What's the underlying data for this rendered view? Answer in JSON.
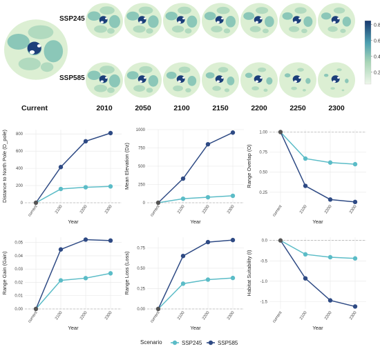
{
  "maps": {
    "rows": [
      "SSP245",
      "SSP585"
    ],
    "columns": [
      "Current",
      "2010",
      "2050",
      "2100",
      "2150",
      "2200",
      "2250",
      "2300"
    ],
    "colorbar": {
      "ticks": [
        "0.8",
        "0.6",
        "0.4",
        "0.2"
      ],
      "tick_values": [
        0.8,
        0.6,
        0.4,
        0.2
      ],
      "min": 0.05,
      "max": 0.85
    },
    "colors": {
      "low": "#e6f2dd",
      "mid": "#7bbfb0",
      "high": "#1c3f7a",
      "land_bg": "#d9ecd0"
    }
  },
  "chart_data": [
    {
      "type": "line",
      "ylabel": "Distance to North Pole (D_pole)",
      "xlabel": "Year",
      "categories": [
        "current",
        "2100",
        "2200",
        "2300"
      ],
      "ylim": [
        0,
        850
      ],
      "yticks": [
        0,
        200,
        400,
        600,
        800
      ],
      "ytick_labels": [
        "0",
        "200",
        "400",
        "600",
        "800"
      ],
      "baseline": 0,
      "series": [
        {
          "name": "SSP245",
          "values": [
            0,
            160,
            180,
            190
          ]
        },
        {
          "name": "SSP585",
          "values": [
            0,
            415,
            715,
            810
          ]
        }
      ]
    },
    {
      "type": "line",
      "ylabel": "Mean Elevation (Dz)",
      "xlabel": "Year",
      "categories": [
        "current",
        "2100",
        "2200",
        "2300"
      ],
      "ylim": [
        0,
        1000
      ],
      "yticks": [
        0,
        250,
        500,
        750,
        1000
      ],
      "ytick_labels": [
        "0",
        "250",
        "500",
        "750",
        "1000"
      ],
      "baseline": 0,
      "series": [
        {
          "name": "SSP245",
          "values": [
            0,
            55,
            75,
            95
          ]
        },
        {
          "name": "SSP585",
          "values": [
            0,
            330,
            800,
            960
          ]
        }
      ]
    },
    {
      "type": "line",
      "ylabel": "Range Overlap (O)",
      "xlabel": "Year",
      "categories": [
        "current",
        "2100",
        "2200",
        "2300"
      ],
      "ylim": [
        0.12,
        1.03
      ],
      "yticks": [
        0.25,
        0.5,
        0.75,
        1.0
      ],
      "ytick_labels": [
        "0.25",
        "0.50",
        "0.75",
        "1.00"
      ],
      "baseline": 1.0,
      "series": [
        {
          "name": "SSP245",
          "values": [
            1.0,
            0.67,
            0.62,
            0.6
          ]
        },
        {
          "name": "SSP585",
          "values": [
            1.0,
            0.33,
            0.16,
            0.13
          ]
        }
      ]
    },
    {
      "type": "line",
      "ylabel": "Range Gain (Gain)",
      "xlabel": "Year",
      "categories": [
        "current",
        "2100",
        "2200",
        "2300"
      ],
      "ylim": [
        0,
        0.054
      ],
      "yticks": [
        0,
        0.01,
        0.02,
        0.03,
        0.04,
        0.05
      ],
      "ytick_labels": [
        "0.00",
        "0.01",
        "0.02",
        "0.03",
        "0.04",
        "0.05"
      ],
      "baseline": 0,
      "series": [
        {
          "name": "SSP245",
          "values": [
            0,
            0.0215,
            0.0232,
            0.0268
          ]
        },
        {
          "name": "SSP585",
          "values": [
            0,
            0.0448,
            0.0522,
            0.0515
          ]
        }
      ]
    },
    {
      "type": "line",
      "ylabel": "Range Loss (Loss)",
      "xlabel": "Year",
      "categories": [
        "current",
        "2100",
        "2200",
        "2300"
      ],
      "ylim": [
        0,
        0.88
      ],
      "yticks": [
        0,
        0.25,
        0.5,
        0.75
      ],
      "ytick_labels": [
        "0.00",
        "0.25",
        "0.50",
        "0.75"
      ],
      "baseline": 0,
      "series": [
        {
          "name": "SSP245",
          "values": [
            0,
            0.31,
            0.36,
            0.38
          ]
        },
        {
          "name": "SSP585",
          "values": [
            0,
            0.65,
            0.82,
            0.845
          ]
        }
      ]
    },
    {
      "type": "line",
      "ylabel": "Habitat Suitability (I)",
      "xlabel": "Year",
      "categories": [
        "current",
        "2100",
        "2200",
        "2300"
      ],
      "ylim": [
        -1.68,
        0.08
      ],
      "yticks": [
        -1.5,
        -1.0,
        -0.5,
        0.0
      ],
      "ytick_labels": [
        "-1.5",
        "-1.0",
        "-0.5",
        "0.0"
      ],
      "baseline": 0,
      "series": [
        {
          "name": "SSP245",
          "values": [
            0,
            -0.34,
            -0.41,
            -0.44
          ]
        },
        {
          "name": "SSP585",
          "values": [
            0,
            -0.93,
            -1.47,
            -1.62
          ]
        }
      ]
    }
  ],
  "legend": {
    "title": "Scenario",
    "items": [
      {
        "label": "SSP245",
        "color": "#5bbcc7"
      },
      {
        "label": "SSP585",
        "color": "#2e4a84"
      }
    ]
  },
  "series_colors": {
    "SSP245": "#5bbcc7",
    "SSP585": "#2e4a84",
    "current": "#555555"
  }
}
